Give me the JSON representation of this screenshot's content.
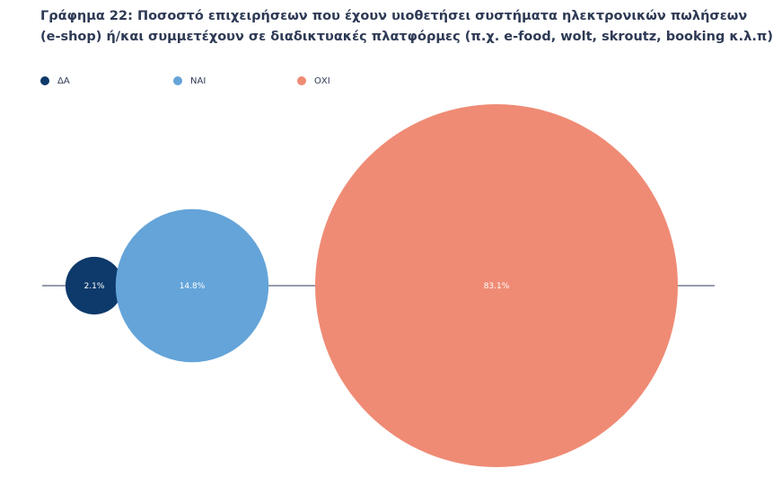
{
  "title_lines": [
    "Γράφημα 22: Ποσοστό επιχειρήσεων που έχουν υιοθετήσει συστήματα ηλεκτρονικών πωλήσεων",
    "(e-shop) ή/και συμμετέχουν σε διαδικτυακές πλατφόρμες (π.χ. e-food, wolt, skroutz, booking κ.λ.π)"
  ],
  "colors": {
    "axis": "#2e3a55",
    "inside_label": "#ffffff",
    "outside_label": "#2e3a55"
  },
  "chart_data": {
    "type": "bubble",
    "title": "Γράφημα 22: Ποσοστό επιχειρήσεων που έχουν υιοθετήσει συστήματα ηλεκτρονικών πωλήσεων (e-shop) ή/και συμμετέχουν σε διαδικτυακές πλατφόρμες (π.χ. e-food, wolt, skroutz, booking κ.λ.π)",
    "legend_position": "top-left",
    "grid": false,
    "value_unit": "%",
    "series": [
      {
        "name": "ΔΑ",
        "value": 2.1,
        "label": "2.1%",
        "color": "#0e3a6b"
      },
      {
        "name": "ΝΑΙ",
        "value": 14.8,
        "label": "14.8%",
        "color": "#64a4d9"
      },
      {
        "name": "ΟΧΙ",
        "value": 83.1,
        "label": "83.1%",
        "color": "#ef8b75"
      }
    ]
  }
}
